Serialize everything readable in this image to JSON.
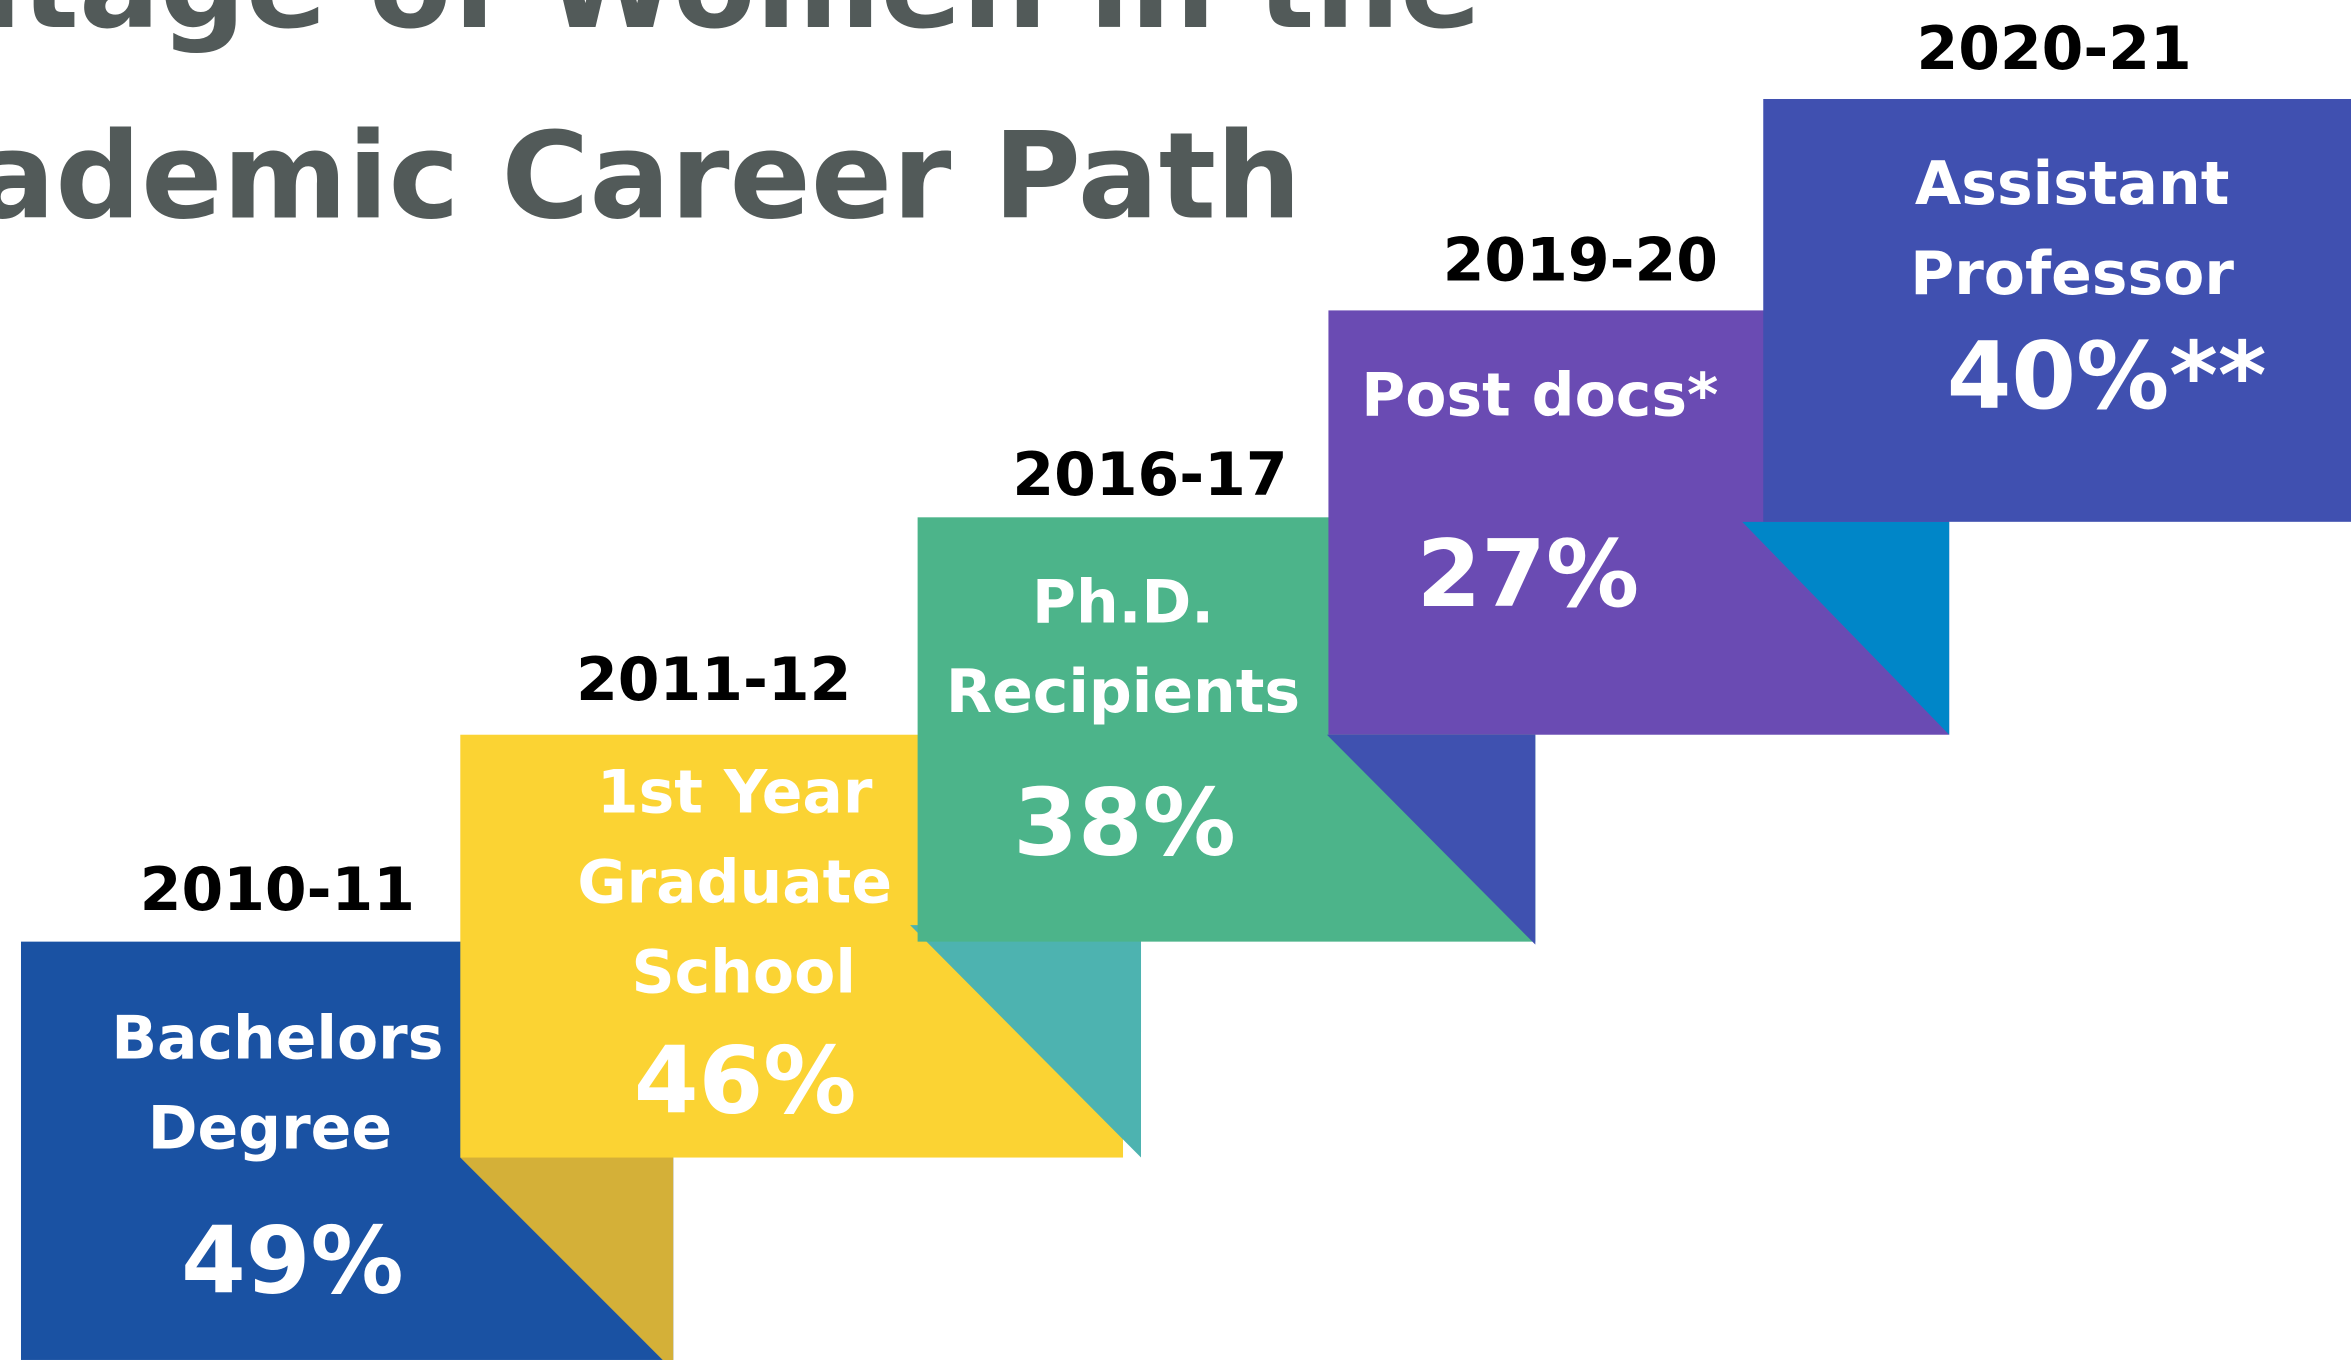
{
  "title": {
    "lines": [
      "Percentage of Women in the",
      "Academic Career Path"
    ]
  },
  "steps": [
    {
      "year": "2010-11",
      "label": [
        "Bachelors",
        "Degree"
      ],
      "value": "49%"
    },
    {
      "year": "2011-12",
      "label": [
        "1st Year",
        "Graduate",
        "School"
      ],
      "value": "46%"
    },
    {
      "year": "2016-17",
      "label": [
        "Ph.D.",
        "Recipients"
      ],
      "value": "38%"
    },
    {
      "year": "2019-20",
      "label": [
        "Post docs*"
      ],
      "value": "27%"
    },
    {
      "year": "2020-21",
      "label": [
        "Assistant",
        "Professor"
      ],
      "value": "40%**"
    }
  ]
}
